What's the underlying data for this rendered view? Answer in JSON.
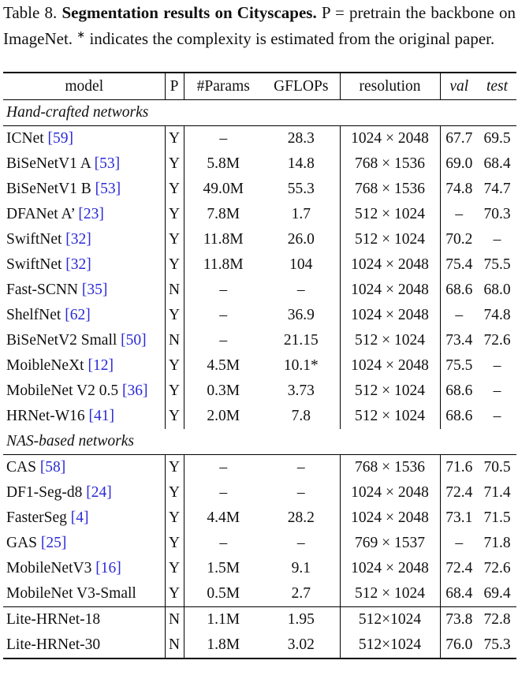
{
  "caption": {
    "label": "Table 8.",
    "title": "Segmentation results on Cityscapes.",
    "text_before": "P = pretrain the backbone on ImageNet.",
    "superscript": "∗",
    "text_after": "indicates the complexity is estimated from the original paper."
  },
  "table": {
    "header": [
      "model",
      "P",
      "#Params",
      "GFLOPs",
      "resolution",
      "val",
      "test"
    ],
    "groups": [
      {
        "title": "Hand-crafted networks",
        "rows": [
          {
            "model": "ICNet",
            "ref": "[59]",
            "cells": [
              "Y",
              "–",
              "28.3",
              "1024 × 2048",
              "67.7",
              "69.5"
            ]
          },
          {
            "model": "BiSeNetV1 A",
            "ref": "[53]",
            "cells": [
              "Y",
              "5.8M",
              "14.8",
              "768 × 1536",
              "69.0",
              "68.4"
            ]
          },
          {
            "model": "BiSeNetV1 B",
            "ref": "[53]",
            "cells": [
              "Y",
              "49.0M",
              "55.3",
              "768 × 1536",
              "74.8",
              "74.7"
            ]
          },
          {
            "model": "DFANet A’",
            "ref": "[23]",
            "cells": [
              "Y",
              "7.8M",
              "1.7",
              "512 × 1024",
              "–",
              "70.3"
            ]
          },
          {
            "model": "SwiftNet",
            "ref": "[32]",
            "cells": [
              "Y",
              "11.8M",
              "26.0",
              "512 × 1024",
              "70.2",
              "–"
            ]
          },
          {
            "model": "SwiftNet",
            "ref": "[32]",
            "cells": [
              "Y",
              "11.8M",
              "104",
              "1024 × 2048",
              "75.4",
              "75.5"
            ]
          },
          {
            "model": "Fast-SCNN",
            "ref": "[35]",
            "cells": [
              "N",
              "–",
              "–",
              "1024 × 2048",
              "68.6",
              "68.0"
            ]
          },
          {
            "model": "ShelfNet",
            "ref": "[62]",
            "cells": [
              "Y",
              "–",
              "36.9",
              "1024 × 2048",
              "–",
              "74.8"
            ]
          },
          {
            "model": "BiSeNetV2 Small",
            "ref": "[50]",
            "cells": [
              "N",
              "–",
              "21.15",
              "512 × 1024",
              "73.4",
              "72.6"
            ]
          },
          {
            "model": "MoibleNeXt",
            "ref": "[12]",
            "cells": [
              "Y",
              "4.5M",
              "10.1*",
              "1024 × 2048",
              "75.5",
              "–"
            ]
          },
          {
            "model": "MobileNet V2 0.5",
            "ref": "[36]",
            "cells": [
              "Y",
              "0.3M",
              "3.73",
              "512 × 1024",
              "68.6",
              "–"
            ]
          },
          {
            "model": "HRNet-W16",
            "ref": "[41]",
            "cells": [
              "Y",
              "2.0M",
              "7.8",
              "512 × 1024",
              "68.6",
              "–"
            ]
          }
        ]
      },
      {
        "title": "NAS-based networks",
        "rows": [
          {
            "model": "CAS",
            "ref": "[58]",
            "cells": [
              "Y",
              "–",
              "–",
              "768 × 1536",
              "71.6",
              "70.5"
            ]
          },
          {
            "model": "DF1-Seg-d8",
            "ref": "[24]",
            "cells": [
              "Y",
              "–",
              "–",
              "1024 × 2048",
              "72.4",
              "71.4"
            ]
          },
          {
            "model": "FasterSeg",
            "ref": "[4]",
            "cells": [
              "Y",
              "4.4M",
              "28.2",
              "1024 × 2048",
              "73.1",
              "71.5"
            ]
          },
          {
            "model": "GAS",
            "ref": "[25]",
            "cells": [
              "Y",
              "–",
              "–",
              "769 × 1537",
              "–",
              "71.8"
            ]
          },
          {
            "model": "MobileNetV3",
            "ref": "[16]",
            "cells": [
              "Y",
              "1.5M",
              "9.1",
              "1024 × 2048",
              "72.4",
              "72.6"
            ]
          },
          {
            "model": "MobileNet V3-Small",
            "cells": [
              "Y",
              "0.5M",
              "2.7",
              "512 × 1024",
              "68.4",
              "69.4"
            ]
          }
        ]
      },
      {
        "rows": [
          {
            "model": "Lite-HRNet-18",
            "cells": [
              "N",
              "1.1M",
              "1.95",
              "512×1024",
              "73.8",
              "72.8"
            ]
          },
          {
            "model": "Lite-HRNet-30",
            "cells": [
              "N",
              "1.8M",
              "3.02",
              "512×1024",
              "76.0",
              "75.3"
            ]
          }
        ]
      }
    ]
  }
}
